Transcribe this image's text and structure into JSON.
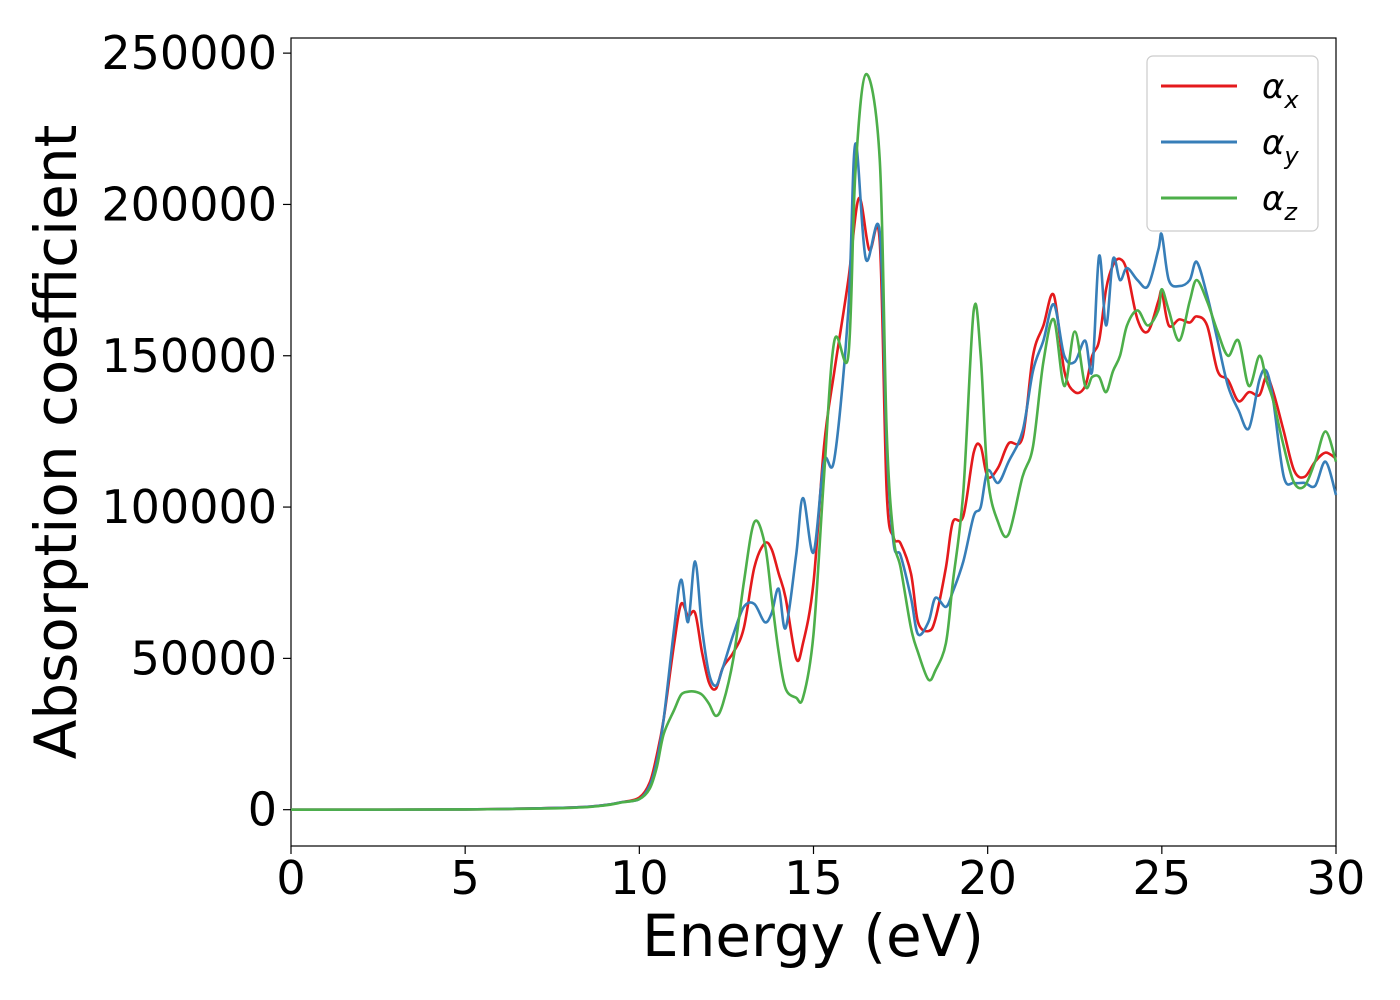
{
  "chart_data": {
    "type": "line",
    "xlabel": "Energy (eV)",
    "ylabel": "Absorption coefficient",
    "xlim": [
      0,
      30
    ],
    "ylim": [
      -12000,
      255000
    ],
    "xticks": [
      0,
      5,
      10,
      15,
      20,
      25,
      30
    ],
    "yticks": [
      0,
      50000,
      100000,
      150000,
      200000,
      250000
    ],
    "xtick_labels": [
      "0",
      "5",
      "10",
      "15",
      "20",
      "25",
      "30"
    ],
    "ytick_labels": [
      "0",
      "50000",
      "100000",
      "150000",
      "200000",
      "250000"
    ],
    "grid": false,
    "legend_position": "top-right",
    "series": [
      {
        "name": "α_x",
        "label_base": "α",
        "label_sub": "x",
        "color": "#e41a1c",
        "x": [
          0,
          5,
          8,
          9,
          9.5,
          10,
          10.3,
          10.5,
          10.7,
          11.0,
          11.2,
          11.4,
          11.6,
          11.8,
          12.0,
          12.2,
          12.4,
          12.7,
          13.0,
          13.3,
          13.6,
          13.8,
          14.0,
          14.2,
          14.5,
          14.7,
          15.0,
          15.3,
          15.6,
          16.0,
          16.3,
          16.6,
          16.9,
          17.1,
          17.3,
          17.5,
          17.8,
          18.0,
          18.3,
          18.5,
          18.8,
          19.0,
          19.3,
          19.6,
          19.8,
          20.0,
          20.3,
          20.6,
          21.0,
          21.3,
          21.6,
          21.9,
          22.2,
          22.5,
          22.8,
          23.0,
          23.2,
          23.4,
          23.6,
          23.8,
          24.0,
          24.3,
          24.6,
          24.9,
          25.0,
          25.2,
          25.5,
          25.8,
          26.0,
          26.3,
          26.6,
          26.9,
          27.2,
          27.5,
          27.8,
          28.0,
          28.2,
          28.5,
          28.8,
          29.1,
          29.4,
          29.7,
          30.0
        ],
        "y": [
          0,
          100,
          700,
          1500,
          2500,
          4000,
          9000,
          18000,
          30000,
          55000,
          68000,
          64000,
          65000,
          52000,
          42000,
          40000,
          47000,
          52000,
          60000,
          80000,
          88000,
          86000,
          78000,
          70000,
          50000,
          55000,
          75000,
          120000,
          145000,
          175000,
          202000,
          185000,
          188000,
          105000,
          90000,
          88000,
          78000,
          62000,
          59000,
          63000,
          80000,
          95000,
          97000,
          118000,
          120000,
          110000,
          113000,
          121000,
          123000,
          150000,
          160000,
          170000,
          145000,
          138000,
          140000,
          150000,
          155000,
          172000,
          180000,
          182000,
          178000,
          162000,
          158000,
          168000,
          171000,
          160000,
          162000,
          161000,
          163000,
          160000,
          145000,
          142000,
          135000,
          138000,
          137000,
          143000,
          138000,
          125000,
          112000,
          110000,
          115000,
          118000,
          116000
        ]
      },
      {
        "name": "α_y",
        "label_base": "α",
        "label_sub": "y",
        "color": "#377eb8",
        "x": [
          0,
          5,
          8,
          9,
          9.5,
          10,
          10.3,
          10.5,
          10.7,
          11.0,
          11.2,
          11.4,
          11.6,
          11.8,
          12.0,
          12.2,
          12.4,
          12.7,
          13.0,
          13.3,
          13.6,
          13.8,
          14.0,
          14.2,
          14.5,
          14.7,
          15.0,
          15.3,
          15.6,
          16.0,
          16.2,
          16.5,
          16.9,
          17.1,
          17.3,
          17.5,
          17.8,
          18.0,
          18.3,
          18.5,
          18.8,
          19.0,
          19.3,
          19.6,
          19.8,
          20.0,
          20.3,
          20.6,
          21.0,
          21.3,
          21.6,
          21.9,
          22.2,
          22.5,
          22.8,
          23.0,
          23.2,
          23.4,
          23.6,
          23.8,
          24.0,
          24.3,
          24.6,
          24.9,
          25.0,
          25.2,
          25.5,
          25.8,
          26.0,
          26.3,
          26.6,
          26.9,
          27.2,
          27.5,
          27.8,
          28.0,
          28.2,
          28.5,
          28.8,
          29.1,
          29.4,
          29.7,
          30.0
        ],
        "y": [
          0,
          100,
          700,
          1500,
          2500,
          3500,
          8000,
          16000,
          30000,
          60000,
          76000,
          62000,
          82000,
          60000,
          45000,
          41000,
          47000,
          58000,
          67000,
          68000,
          62000,
          65000,
          73000,
          60000,
          84000,
          103000,
          85000,
          115000,
          116000,
          165000,
          220000,
          182000,
          191000,
          120000,
          88000,
          84000,
          70000,
          58000,
          62000,
          70000,
          67000,
          72000,
          82000,
          97000,
          100000,
          112000,
          108000,
          115000,
          125000,
          145000,
          155000,
          167000,
          150000,
          148000,
          155000,
          145000,
          183000,
          160000,
          182000,
          175000,
          179000,
          175000,
          173000,
          185000,
          190000,
          175000,
          173000,
          175000,
          181000,
          170000,
          155000,
          140000,
          132000,
          126000,
          142000,
          145000,
          135000,
          110000,
          108000,
          108000,
          107000,
          115000,
          104000
        ]
      },
      {
        "name": "α_z",
        "label_base": "α",
        "label_sub": "z",
        "color": "#4daf4a",
        "x": [
          0,
          5,
          8,
          9,
          9.5,
          10,
          10.3,
          10.5,
          10.7,
          11.0,
          11.2,
          11.4,
          11.6,
          11.8,
          12.0,
          12.2,
          12.4,
          12.7,
          13.0,
          13.3,
          13.6,
          13.8,
          14.0,
          14.2,
          14.5,
          14.7,
          15.0,
          15.3,
          15.6,
          16.0,
          16.2,
          16.5,
          16.9,
          17.1,
          17.3,
          17.5,
          17.8,
          18.0,
          18.3,
          18.5,
          18.8,
          19.0,
          19.3,
          19.6,
          19.8,
          20.0,
          20.3,
          20.6,
          21.0,
          21.3,
          21.6,
          21.9,
          22.2,
          22.5,
          22.8,
          23.0,
          23.2,
          23.4,
          23.6,
          23.8,
          24.0,
          24.3,
          24.6,
          24.9,
          25.0,
          25.2,
          25.5,
          25.8,
          26.0,
          26.3,
          26.6,
          26.9,
          27.2,
          27.5,
          27.8,
          28.0,
          28.2,
          28.5,
          28.8,
          29.1,
          29.4,
          29.7,
          30.0
        ],
        "y": [
          0,
          100,
          600,
          1400,
          2400,
          3500,
          7000,
          14000,
          25000,
          33000,
          38000,
          39000,
          39000,
          38000,
          35000,
          31000,
          35000,
          50000,
          75000,
          95000,
          88000,
          70000,
          52000,
          40000,
          37000,
          37000,
          58000,
          110000,
          155000,
          150000,
          210000,
          243000,
          215000,
          125000,
          90000,
          80000,
          60000,
          52000,
          43000,
          46000,
          55000,
          75000,
          105000,
          165000,
          150000,
          110000,
          95000,
          91000,
          110000,
          120000,
          148000,
          162000,
          140000,
          158000,
          140000,
          143000,
          143000,
          138000,
          145000,
          150000,
          160000,
          165000,
          160000,
          165000,
          172000,
          165000,
          155000,
          168000,
          175000,
          168000,
          158000,
          150000,
          155000,
          140000,
          150000,
          142000,
          135000,
          120000,
          108000,
          107000,
          115000,
          125000,
          115000
        ]
      }
    ]
  }
}
